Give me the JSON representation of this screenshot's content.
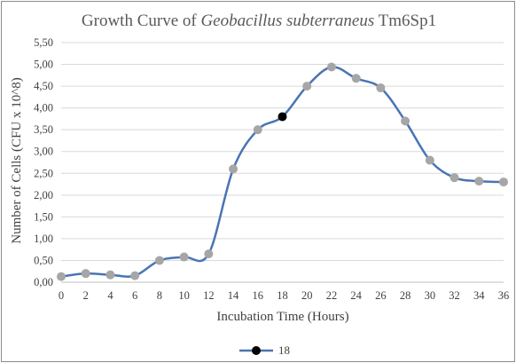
{
  "colors": {
    "line": "#4a74b4",
    "marker": "#a6a6a6",
    "marker_highlight": "#000000",
    "grid": "#d9d9d9",
    "axis": "#bfbfbf",
    "text": "#404040",
    "title": "#595959"
  },
  "chart_data": {
    "type": "line",
    "title_parts": [
      "Growth Curve of ",
      "Geobacillus subterraneus",
      " Tm6Sp1"
    ],
    "xlabel": "Incubation Time (Hours)",
    "ylabel": "Number of Cells (CFU x 10^8)",
    "x": [
      0,
      2,
      4,
      6,
      8,
      10,
      12,
      14,
      16,
      18,
      20,
      22,
      24,
      26,
      28,
      30,
      32,
      34,
      36
    ],
    "x_tick_labels": [
      "0",
      "2",
      "4",
      "6",
      "8",
      "10",
      "12",
      "14",
      "16",
      "18",
      "20",
      "22",
      "24",
      "26",
      "28",
      "30",
      "32",
      "34",
      "36"
    ],
    "y": [
      0.13,
      0.2,
      0.17,
      0.15,
      0.5,
      0.58,
      0.65,
      2.6,
      3.5,
      3.8,
      4.5,
      4.94,
      4.68,
      4.46,
      3.7,
      2.8,
      2.4,
      2.32,
      2.3
    ],
    "y_tick_labels": [
      "0,00",
      "0,50",
      "1,00",
      "1,50",
      "2,00",
      "2,50",
      "3,00",
      "3,50",
      "4,00",
      "4,50",
      "5,00",
      "5,50"
    ],
    "ylim": [
      0,
      5.5
    ],
    "xlim": [
      0,
      36
    ],
    "y_step": 0.5,
    "grid": "horizontal",
    "highlight_index": 9,
    "legend": {
      "position": "bottom",
      "entries": [
        "18"
      ]
    }
  }
}
